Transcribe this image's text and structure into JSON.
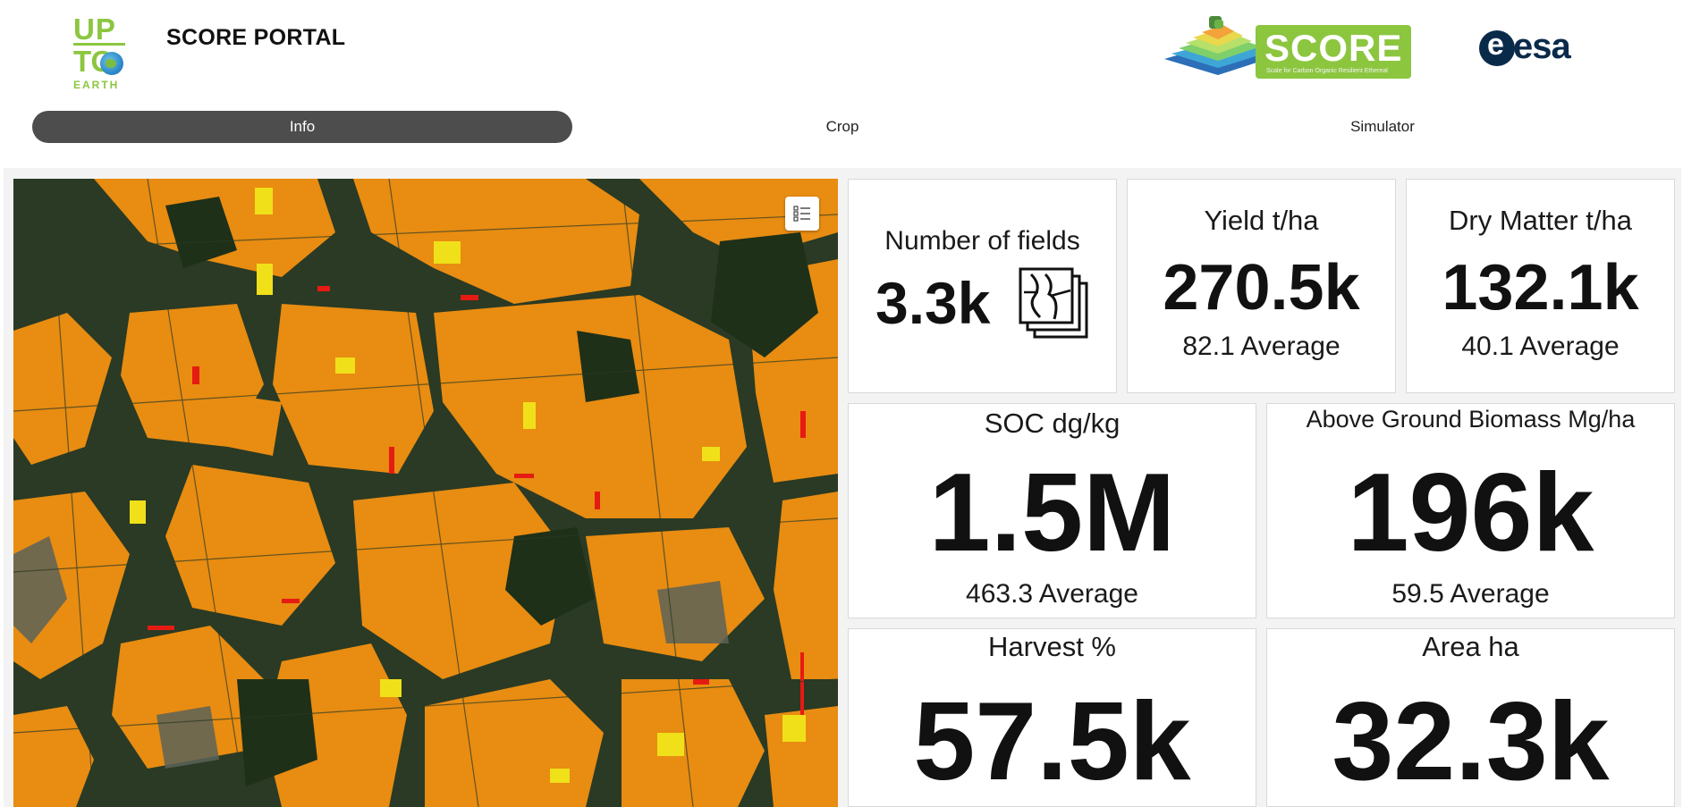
{
  "header": {
    "logo_upto": {
      "line1": "UP",
      "line2": "TO",
      "line3": "EARTH"
    },
    "title": "SCORE PORTAL",
    "logo_score": {
      "word": "SCORE",
      "tagline": "Scale for Carbon Organic Resilient Ethereal"
    },
    "logo_esa": {
      "word": "esa"
    }
  },
  "tabs": [
    {
      "label": "Info",
      "active": true
    },
    {
      "label": "Crop",
      "active": false
    },
    {
      "label": "Simulator",
      "active": false
    }
  ],
  "map": {
    "legend_button_icon": "legend-list-icon",
    "colors": {
      "field": "#e88c12",
      "forest": "#23361f",
      "urban": "#5b6358",
      "highlight_yellow": "#f0e019",
      "highlight_red": "#e51b12"
    }
  },
  "cards": {
    "fields": {
      "title": "Number of fields",
      "value": "3.3k",
      "icon": "stacked-map-icon"
    },
    "yield": {
      "title": "Yield t/ha",
      "value": "270.5k",
      "average": "82.1 Average"
    },
    "dry_matter": {
      "title": "Dry Matter t/ha",
      "value": "132.1k",
      "average": "40.1 Average"
    },
    "soc": {
      "title": "SOC dg/kg",
      "value": "1.5M",
      "average": "463.3 Average"
    },
    "agb": {
      "title": "Above Ground Biomass Mg/ha",
      "value": "196k",
      "average": "59.5 Average"
    },
    "harvest": {
      "title": "Harvest %",
      "value": "57.5k"
    },
    "area": {
      "title": "Area ha",
      "value": "32.3k"
    }
  }
}
